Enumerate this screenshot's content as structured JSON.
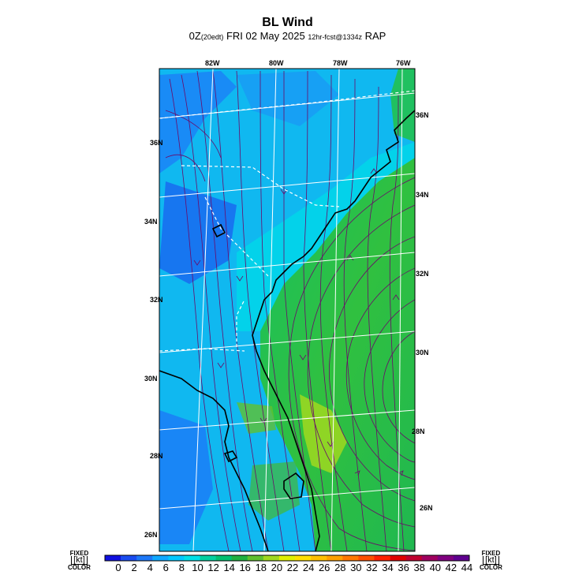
{
  "header": {
    "title": "BL Wind",
    "subtitle_main": "0Z",
    "subtitle_edt": "(20edt)",
    "subtitle_date": " FRI 02 May 2025 ",
    "subtitle_fcst": "12hr-fcst@1334z",
    "subtitle_model": " RAP"
  },
  "axes": {
    "longitude_labels": [
      "82W",
      "80W",
      "78W",
      "76W"
    ],
    "latitude_labels_left": [
      "36N",
      "34N",
      "32N",
      "30N",
      "28N",
      "26N"
    ],
    "latitude_labels_right": [
      "36N",
      "34N",
      "32N",
      "30N",
      "28N",
      "26N"
    ]
  },
  "colorbar": {
    "left_top": "FIXED",
    "left_unit": "[kt]",
    "left_bottom": "COLOR",
    "right_top": "FIXED",
    "right_unit": "[kt]",
    "right_bottom": "COLOR",
    "ticks": [
      "0",
      "2",
      "4",
      "6",
      "8",
      "10",
      "12",
      "14",
      "16",
      "18",
      "20",
      "22",
      "24",
      "26",
      "28",
      "30",
      "32",
      "34",
      "36",
      "38",
      "40",
      "42",
      "44"
    ],
    "colors": [
      "#1010e0",
      "#1a4cf0",
      "#1e78f8",
      "#10a8ff",
      "#00c8ff",
      "#00e0e8",
      "#00d0a0",
      "#00c070",
      "#20b040",
      "#60c030",
      "#a0d820",
      "#e0f000",
      "#ffe000",
      "#ffc000",
      "#ffa000",
      "#ff7800",
      "#ff5000",
      "#ff2000",
      "#e00000",
      "#c00030",
      "#a00060",
      "#800080",
      "#600090"
    ]
  },
  "colors": {
    "land_fill": "#10b8f0",
    "ocean_low": "#20c850",
    "coastline": "#000000",
    "streamline": "#6a0a6a",
    "grid": "#ffffff"
  }
}
